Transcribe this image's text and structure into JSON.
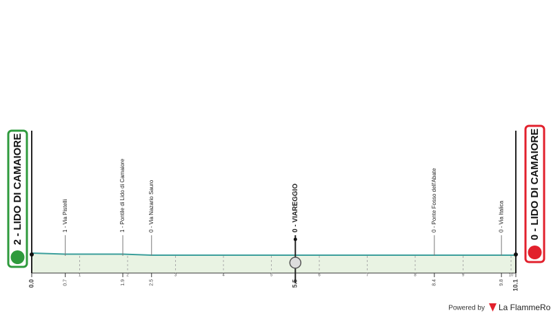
{
  "chart_data": {
    "type": "area",
    "x": [
      0,
      0.7,
      1.9,
      2.5,
      5.5,
      8.4,
      9.8,
      10.1
    ],
    "values": [
      2,
      1,
      1,
      0,
      0,
      0,
      0,
      0
    ],
    "point_labels": [
      "2 - LIDO DI CAMAIORE",
      "1 - Via Pistelli",
      "1 - Pontile di Lido di Camaiore",
      "0 - Via Nazario Sauro",
      "0 - VIAREGGIO",
      "0 - Ponte Fosso dell'Abate",
      "0 - Via Italica",
      "0 - LIDO DI CAMAIORE"
    ],
    "xlim": [
      0,
      10.1
    ],
    "xticks": [
      {
        "value": 0,
        "label": "0.0"
      },
      0.7,
      1.9,
      2.5,
      5.5,
      8.4,
      9.8,
      10.1
    ],
    "minor_ticks": [
      1,
      2,
      3,
      4,
      5,
      6,
      7,
      8,
      9,
      10
    ],
    "color": "#3a9e9b",
    "fill": "#e9f3e3",
    "start_color": "#2e9a3c",
    "finish_color": "#e2202c"
  },
  "footer": {
    "powered_by": "Powered by",
    "brand": "La FlammeRouge"
  }
}
